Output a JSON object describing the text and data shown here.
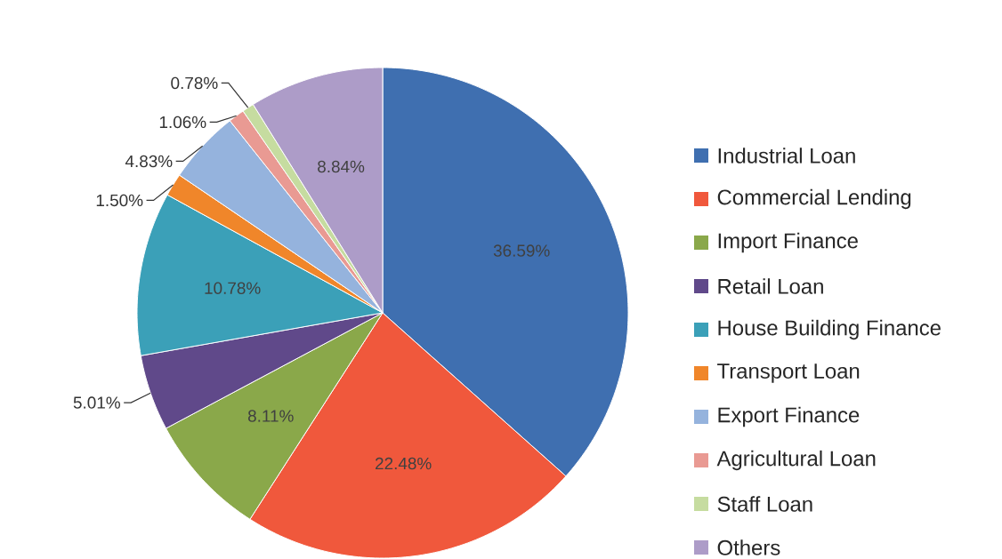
{
  "chart_data": {
    "type": "pie",
    "categories": [
      "Industrial Loan",
      "Commercial Lending",
      "Import Finance",
      "Retail Loan",
      "House Building Finance",
      "Transport Loan",
      "Export Finance",
      "Agricultural Loan",
      "Staff Loan",
      "Others"
    ],
    "values": [
      36.59,
      22.48,
      8.11,
      5.01,
      10.78,
      1.5,
      4.83,
      1.06,
      0.78,
      8.84
    ],
    "value_labels": [
      "36.59%",
      "22.48%",
      "8.11%",
      "5.01%",
      "10.78%",
      "1.50%",
      "4.83%",
      "1.06%",
      "0.78%",
      "8.84%"
    ],
    "colors": [
      "#3f6fb0",
      "#f0583c",
      "#8aa84a",
      "#60498a",
      "#3ba0b8",
      "#f0862a",
      "#95b3dd",
      "#e99a93",
      "#c6dca0",
      "#ad9cc8"
    ],
    "legend": "right"
  }
}
